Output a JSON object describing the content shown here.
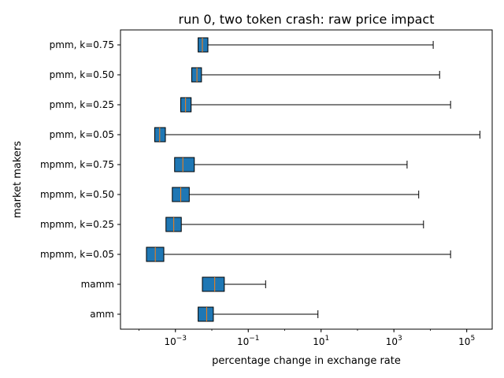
{
  "chart_data": {
    "type": "boxplot",
    "orientation": "horizontal",
    "title": "run 0, two token crash: raw price impact",
    "xlabel": "percentage change in exchange rate",
    "ylabel": "market makers",
    "xscale": "log",
    "xlim": [
      3.1e-05,
      500000
    ],
    "xticks": [
      {
        "value": 0.001,
        "base": "10",
        "exp": "−3"
      },
      {
        "value": 0.1,
        "base": "10",
        "exp": "−1"
      },
      {
        "value": 10,
        "base": "10",
        "exp": "1"
      },
      {
        "value": 1000,
        "base": "10",
        "exp": "3"
      },
      {
        "value": 100000,
        "base": "10",
        "exp": "5"
      }
    ],
    "grid": false,
    "categories": [
      "pmm, k=0.75",
      "pmm, k=0.50",
      "pmm, k=0.25",
      "pmm, k=0.05",
      "mpmm, k=0.75",
      "mpmm, k=0.50",
      "mpmm, k=0.25",
      "mpmm, k=0.05",
      "mamm",
      "amm"
    ],
    "boxes": [
      {
        "q1": 0.0042,
        "median": 0.0055,
        "q3": 0.0078,
        "whisker_low": 0.0042,
        "whisker_high": 12000
      },
      {
        "q1": 0.0028,
        "median": 0.0039,
        "q3": 0.0052,
        "whisker_low": 0.0028,
        "whisker_high": 18000
      },
      {
        "q1": 0.0014,
        "median": 0.0019,
        "q3": 0.0027,
        "whisker_low": 0.0014,
        "whisker_high": 36000
      },
      {
        "q1": 0.00027,
        "median": 0.00037,
        "q3": 0.00053,
        "whisker_low": 0.00027,
        "whisker_high": 230000
      },
      {
        "q1": 0.00095,
        "median": 0.0016,
        "q3": 0.0033,
        "whisker_low": 0.00095,
        "whisker_high": 2300
      },
      {
        "q1": 0.00082,
        "median": 0.0014,
        "q3": 0.0024,
        "whisker_low": 0.00082,
        "whisker_high": 4800
      },
      {
        "q1": 0.00055,
        "median": 0.0009,
        "q3": 0.00145,
        "whisker_low": 0.00055,
        "whisker_high": 6500
      },
      {
        "q1": 0.00016,
        "median": 0.00028,
        "q3": 0.00048,
        "whisker_low": 0.00016,
        "whisker_high": 36000
      },
      {
        "q1": 0.0055,
        "median": 0.012,
        "q3": 0.022,
        "whisker_low": 0.0055,
        "whisker_high": 0.3
      },
      {
        "q1": 0.0042,
        "median": 0.0072,
        "q3": 0.011,
        "whisker_low": 0.0042,
        "whisker_high": 8.2
      }
    ],
    "colors": {
      "box_fill": "#1f77b4",
      "median": "#ff7f0e",
      "line": "#000000"
    }
  }
}
